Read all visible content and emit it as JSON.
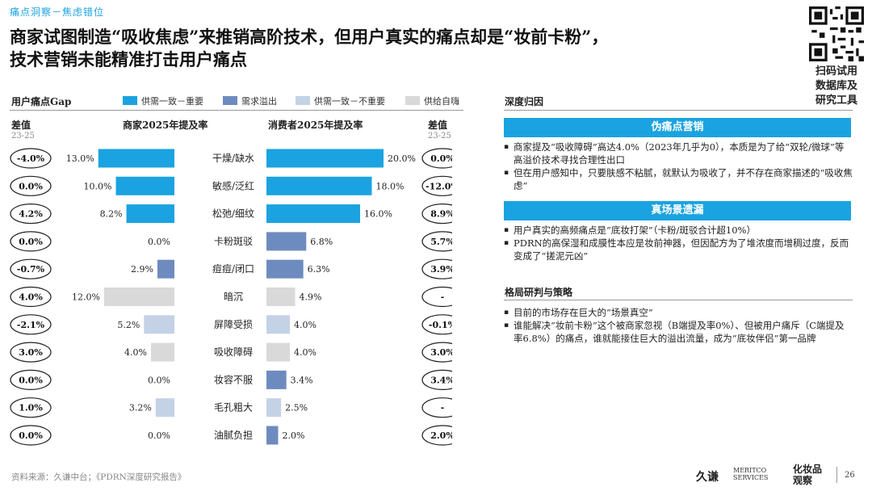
{
  "header": {
    "topic": "痛点洞察－焦虑错位",
    "title_line1": "商家试图制造“吸收焦虑”来推销高阶技术，但用户真实的痛点却是“妆前卡粉”，",
    "title_line2": "技术营销未能精准打击用户痛点"
  },
  "qr": {
    "caption": [
      "扫码试用",
      "数据库及",
      "研究工具"
    ]
  },
  "left_panel": {
    "label": "用户痛点Gap",
    "legend": [
      {
        "label": "供需一致－重要",
        "color": "#1aa3e0"
      },
      {
        "label": "需求溢出",
        "color": "#6e8bbf"
      },
      {
        "label": "供需一致－不重要",
        "color": "#c4d2e6"
      },
      {
        "label": "供给自嗨",
        "color": "#d9d9d9"
      }
    ],
    "diff_header": "差值",
    "diff_sub": "23-25",
    "merchant_header": "商家2025年提及率",
    "consumer_header": "消费者2025年提及率"
  },
  "chart_data": {
    "type": "bar",
    "categories": [
      "干燥/缺水",
      "敏感/泛红",
      "松弛/细纹",
      "卡粉斑驳",
      "痘痘/闭口",
      "暗沉",
      "屏障受损",
      "吸收障碍",
      "妆容不服",
      "毛孔粗大",
      "油腻负担"
    ],
    "series": [
      {
        "name": "商家2025年提及率",
        "values": [
          13.0,
          10.0,
          8.2,
          0.0,
          2.9,
          12.0,
          5.2,
          4.0,
          0.0,
          3.2,
          0.0
        ]
      },
      {
        "name": "消费者2025年提及率",
        "values": [
          20.0,
          18.0,
          16.0,
          6.8,
          6.3,
          4.9,
          4.0,
          4.0,
          3.4,
          2.5,
          2.0
        ]
      }
    ],
    "merchant_labels": [
      "13.0%",
      "10.0%",
      "8.2%",
      "0.0%",
      "2.9%",
      "12.0%",
      "5.2%",
      "4.0%",
      "0.0%",
      "3.2%",
      "0.0%"
    ],
    "consumer_labels": [
      "20.0%",
      "18.0%",
      "16.0%",
      "6.8%",
      "6.3%",
      "4.9%",
      "4.0%",
      "4.0%",
      "3.4%",
      "2.5%",
      "2.0%"
    ],
    "merchant_diff": [
      "-4.0%",
      "0.0%",
      "4.2%",
      "0.0%",
      "-0.7%",
      "4.0%",
      "-2.1%",
      "3.0%",
      "0.0%",
      "1.0%",
      "0.0%"
    ],
    "consumer_diff": [
      "0.0%",
      "-12.0%",
      "8.9%",
      "5.7%",
      "3.9%",
      "-",
      "-0.1%",
      "3.0%",
      "3.4%",
      "-",
      "2.0%"
    ],
    "merchant_colors": [
      "#1aa3e0",
      "#1aa3e0",
      "#1aa3e0",
      "#6e8bbf",
      "#6e8bbf",
      "#d9d9d9",
      "#c4d2e6",
      "#d9d9d9",
      "#6e8bbf",
      "#c4d2e6",
      "#6e8bbf"
    ],
    "consumer_colors": [
      "#1aa3e0",
      "#1aa3e0",
      "#1aa3e0",
      "#6e8bbf",
      "#6e8bbf",
      "#d9d9d9",
      "#c4d2e6",
      "#d9d9d9",
      "#6e8bbf",
      "#c4d2e6",
      "#6e8bbf"
    ],
    "xlim": [
      0,
      20
    ]
  },
  "right_panel": {
    "label": "深度归因",
    "section1": {
      "title": "伪痛点营销",
      "bullets": [
        "商家提及“吸收障碍”高达4.0%（2023年几乎为0），本质是为了给“双轮/微球”等高溢价技术寻找合理性出口",
        "但在用户感知中，只要肤感不粘腻，就默认为吸收了，并不存在商家描述的“吸收焦虑”"
      ]
    },
    "section2": {
      "title": "真场景遗漏",
      "bullets": [
        "用户真实的高频痛点是“底妆打架”（卡粉/斑驳合计超10%）",
        "PDRN的高保湿和成膜性本应是妆前神器，但因配方为了堆浓度而增稠过度，反而变成了“搓泥元凶”"
      ]
    },
    "section3": {
      "title": "格局研判与策略",
      "bullets": [
        "目前的市场存在巨大的“场景真空”",
        "谁能解决“妆前卡粉”这个被商家忽视（B端提及率0%）、但被用户痛斥（C端提及率6.8%）的痛点，谁就能接住巨大的溢出流量，成为“底妆伴侣”第一品牌"
      ]
    }
  },
  "footer": {
    "source": "资料来源：久谦中台；《PDRN深度研究报告》",
    "logo1": "久谦",
    "logo1_sub": [
      "MERITCO",
      "SERVICES"
    ],
    "logo2": [
      "化妆品",
      "观察"
    ],
    "page": "26"
  }
}
